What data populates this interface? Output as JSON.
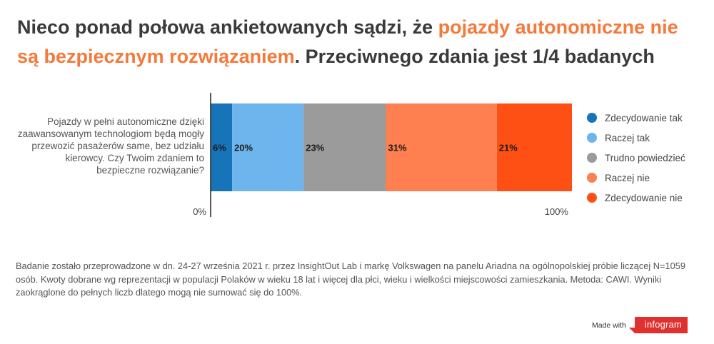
{
  "title": {
    "part1": "Nieco ponad połowa ankietowanych sądzi, że ",
    "highlight": "pojazdy autonomiczne nie są bezpiecznym rozwiązaniem",
    "part2": ". Przeciwnego zdania jest 1/4 badanych",
    "highlight_color": "#f5793a"
  },
  "chart_data": {
    "type": "bar",
    "orientation": "horizontal",
    "stacked": true,
    "categories": [
      "Pojazdy w pełni autonomiczne dzięki zaawansowanym technologiom będą mogły przewozić pasażerów same, bez udziału kierowcy. Czy Twoim zdaniem to bezpieczne rozwiązanie?"
    ],
    "series": [
      {
        "name": "Zdecydowanie tak",
        "values": [
          6
        ],
        "color": "#1874b8",
        "label": "6%"
      },
      {
        "name": "Raczej tak",
        "values": [
          20
        ],
        "color": "#6db5ec",
        "label": "20%"
      },
      {
        "name": "Trudno powiedzieć",
        "values": [
          23
        ],
        "color": "#9b9b9b",
        "label": "23%"
      },
      {
        "name": "Raczej nie",
        "values": [
          31
        ],
        "color": "#fe7f4f",
        "label": "31%"
      },
      {
        "name": "Zdecydowanie nie",
        "values": [
          21
        ],
        "color": "#fe5014",
        "label": "21%"
      }
    ],
    "xlim": [
      0,
      101
    ],
    "x_ticks": [
      "0%",
      "100%"
    ],
    "legend_position": "right"
  },
  "note": "Badanie zostało przeprowadzone w dn. 24-27 września 2021 r. przez InsightOut Lab i markę Volkswagen na panelu Ariadna na ogólnopolskiej próbie liczącej N=1059 osób. Kwoty dobrane wg reprezentacji w populacji Polaków w wieku 18 lat i więcej dla płci, wieku i wielkości miejscowości zamieszkania. Metoda: CAWI. Wyniki zaokrąglone do pełnych liczb dlatego mogą nie sumować się do 100%.",
  "credit": {
    "made_with": "Made with",
    "brand": "infogram"
  }
}
